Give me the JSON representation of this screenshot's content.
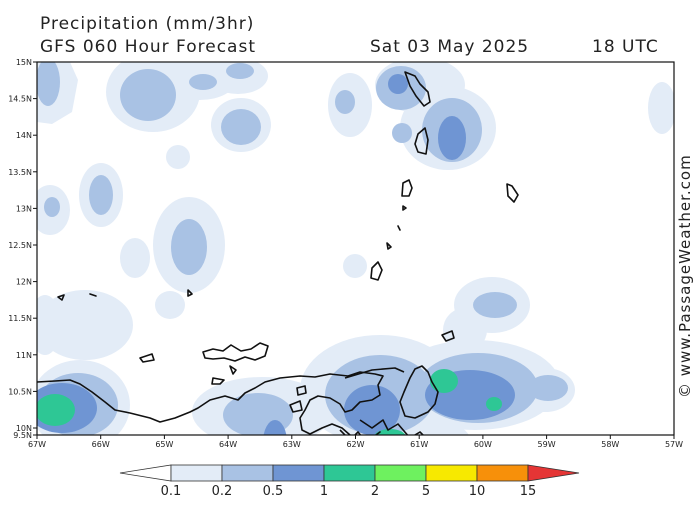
{
  "header": {
    "title": "Precipitation (mm/3hr)",
    "model": "GFS 060 Hour Forecast",
    "date": "Sat 03 May 2025",
    "time": "18 UTC"
  },
  "credit": "© www.PassageWeather.com",
  "map": {
    "lat_labels": [
      "15N",
      "14.5N",
      "14N",
      "13.5N",
      "13N",
      "12.5N",
      "12N",
      "11.5N",
      "11N",
      "10.5N",
      "10N",
      "9.5N"
    ],
    "lon_labels": [
      "67W",
      "66W",
      "65W",
      "64W",
      "63W",
      "62W",
      "61W",
      "60W",
      "59W",
      "58W",
      "57W"
    ]
  },
  "legend": {
    "thresholds": [
      "0.1",
      "0.2",
      "0.5",
      "1",
      "2",
      "5",
      "10",
      "15"
    ],
    "colors": [
      "#ffffff",
      "#e3ecf7",
      "#a9c2e4",
      "#6f95d3",
      "#2ec795",
      "#6ef15f",
      "#f7e900",
      "#f7900a",
      "#e53535"
    ]
  }
}
